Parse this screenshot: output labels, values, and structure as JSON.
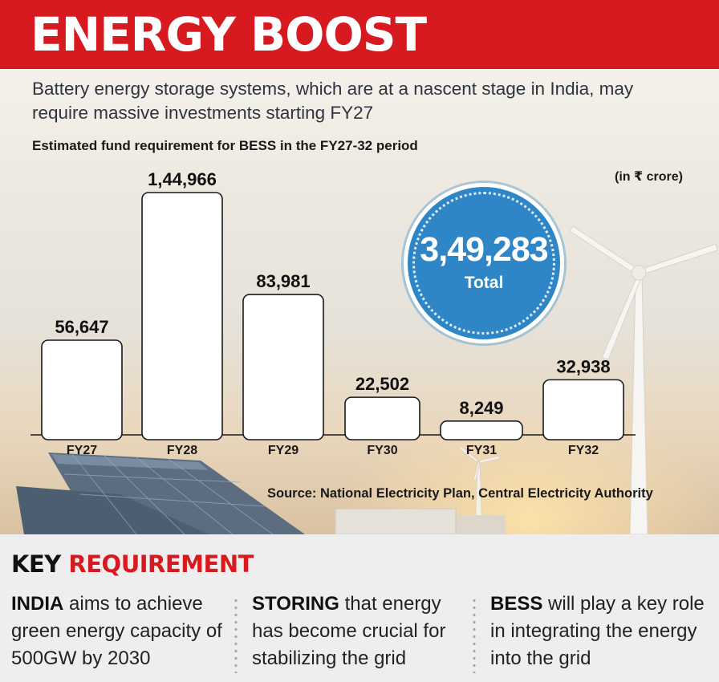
{
  "header": {
    "title": "ENERGY BOOST"
  },
  "subtitle": "Battery energy storage systems, which are at a nascent stage in India, may require massive investments starting FY27",
  "chart_data": {
    "type": "bar",
    "title": "Estimated fund requirement for BESS in the FY27-32 period",
    "unit_note": "(in ₹ crore)",
    "categories": [
      "FY27",
      "FY28",
      "FY29",
      "FY30",
      "FY31",
      "FY32"
    ],
    "values": [
      56647,
      144966,
      83981,
      22502,
      8249,
      32938
    ],
    "value_labels": [
      "56,647",
      "1,44,966",
      "83,981",
      "22,502",
      "8,249",
      "32,938"
    ],
    "xlabel": "",
    "ylabel": "",
    "grid": false,
    "bar_color": "#ffffff",
    "total": {
      "value": "3,49,283",
      "label": "Total",
      "color": "#2f86c6"
    },
    "source": "Source: National Electricity Plan, Central Electricity Authority"
  },
  "key": {
    "heading_black": "KEY",
    "heading_red": "REQUIREMENT",
    "items": [
      {
        "lead": "INDIA",
        "text": " aims to achieve green energy capacity of 500GW by 2030"
      },
      {
        "lead": "STORING",
        "text": " that energy has become crucial for stabilizing the grid"
      },
      {
        "lead": "BESS",
        "text": " will play a key role in integrating the energy into the grid"
      }
    ]
  },
  "colors": {
    "accent_red": "#d71920",
    "badge_blue": "#2f86c6"
  }
}
